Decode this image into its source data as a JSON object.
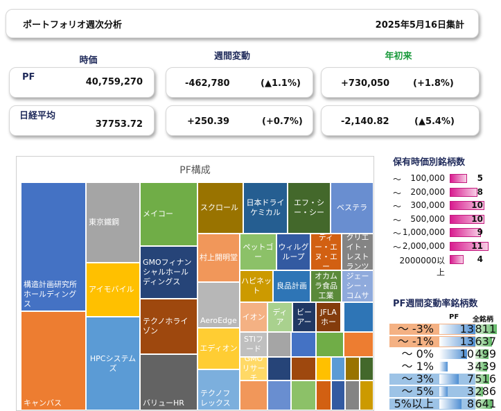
{
  "header": {
    "title": "ポートフォリオ週次分析",
    "date": "2025年5月16日集計"
  },
  "columns": {
    "price": "時価",
    "weekly": "週間変動",
    "ytd": "年初来"
  },
  "colors": {
    "ytd_header": "#1a9a3c",
    "holding_bar": "#d81b8f",
    "pf_bar": "#4f8fd3",
    "all_bar": "#62b867",
    "negative_band": "#f4b183",
    "positive_band": "#9dc3e6"
  },
  "rows": [
    {
      "label": "PF",
      "value": "40,759,270",
      "weekly_abs": "-462,780",
      "weekly_pct": "(▲1.1%)",
      "ytd_abs": "+730,050",
      "ytd_pct": "(+1.8%)"
    },
    {
      "label": "日経平均",
      "value": "37753.72",
      "weekly_abs": "+250.39",
      "weekly_pct": "(+0.7%)",
      "ytd_abs": "-2,140.82",
      "ytd_pct": "(▲5.4%)"
    }
  ],
  "treemap": {
    "title": "PF構成",
    "tiles": [
      {
        "name": "構造計画研究所ホールディングス",
        "color": "#4472c4"
      },
      {
        "name": "キャンバス",
        "color": "#ed7d31"
      },
      {
        "name": "東京鐵鋼",
        "color": "#a5a5a5"
      },
      {
        "name": "アイモバイル",
        "color": "#ffc000"
      },
      {
        "name": "HPCシステムズ",
        "color": "#5b9bd5"
      },
      {
        "name": "メイコー",
        "color": "#70ad47"
      },
      {
        "name": "GMOフィナンシャルホールディングス",
        "color": "#264478"
      },
      {
        "name": "テクノホライゾン",
        "color": "#9e480e"
      },
      {
        "name": "バリューHR",
        "color": "#636363"
      },
      {
        "name": "スクロール",
        "color": "#997300"
      },
      {
        "name": "日本ドライケミカル",
        "color": "#255e91"
      },
      {
        "name": "エフ・シー・シー",
        "color": "#43682b"
      },
      {
        "name": "ベステラ",
        "color": "#698ed0"
      },
      {
        "name": "村上開明堂",
        "color": "#f1975a"
      },
      {
        "name": "AeroEdge",
        "color": "#b7b7b7"
      },
      {
        "name": "エディオン",
        "color": "#ffcd33"
      },
      {
        "name": "テクノフレックス",
        "color": "#7cafdd"
      },
      {
        "name": "ペットゴー",
        "color": "#8cc168"
      },
      {
        "name": "ウィルグループ",
        "color": "#335aa1"
      },
      {
        "name": "ディー・エヌ・エー",
        "color": "#d26012"
      },
      {
        "name": "クリエイト・レストランツ",
        "color": "#848484"
      },
      {
        "name": "ハピネット",
        "color": "#cc9a00"
      },
      {
        "name": "良品計画",
        "color": "#2e75b6"
      },
      {
        "name": "オカムラ食品工業",
        "color": "#5a8a3a"
      },
      {
        "name": "ジェーシー・コムサ",
        "color": "#8faadc"
      },
      {
        "name": "イオン",
        "color": "#f4b183"
      },
      {
        "name": "ディア",
        "color": "#a9d18e"
      },
      {
        "name": "ビーアー",
        "color": "#203864"
      },
      {
        "name": "JFLAホー",
        "color": "#843c0c"
      },
      {
        "name": "STIフード",
        "color": "#bfbfbf"
      },
      {
        "name": "GMOリサーチ",
        "color": "#ffd966"
      }
    ]
  },
  "holdings_by_value": {
    "title": "保有時価別銘柄数",
    "rows": [
      {
        "prefix": "～",
        "amount": "100,000",
        "count": "5",
        "fill": 0.45
      },
      {
        "prefix": "～",
        "amount": "200,000",
        "count": "8",
        "fill": 0.72
      },
      {
        "prefix": "～",
        "amount": "300,000",
        "count": "10",
        "fill": 0.9
      },
      {
        "prefix": "～",
        "amount": "500,000",
        "count": "10",
        "fill": 0.9
      },
      {
        "prefix": "～",
        "amount": "1,000,000",
        "count": "9",
        "fill": 0.81
      },
      {
        "prefix": "～",
        "amount": "2,000,000",
        "count": "11",
        "fill": 1.0
      },
      {
        "prefix": "",
        "amount": "2000000以上",
        "count": "4",
        "fill": 0.36
      }
    ]
  },
  "weekly_change_counts": {
    "title": "PF週間変動率銘柄数",
    "col_pf": "PF",
    "col_all": "全銘柄",
    "rows": [
      {
        "label": "～ -3%",
        "pf": "13",
        "all": "811",
        "pf_fill": 1.0,
        "all_fill": 1.0,
        "band": "neg"
      },
      {
        "label": "～ -1%",
        "pf": "13",
        "all": "637",
        "pf_fill": 1.0,
        "all_fill": 0.78,
        "band": "neg"
      },
      {
        "label": "～ 0%",
        "pf": "10",
        "all": "499",
        "pf_fill": 0.77,
        "all_fill": 0.62,
        "band": "none"
      },
      {
        "label": "～ 1%",
        "pf": "3",
        "all": "439",
        "pf_fill": 0.23,
        "all_fill": 0.54,
        "band": "none"
      },
      {
        "label": "～ 3%",
        "pf": "7",
        "all": "516",
        "pf_fill": 0.54,
        "all_fill": 0.64,
        "band": "pos"
      },
      {
        "label": "～ 5%",
        "pf": "3",
        "all": "286",
        "pf_fill": 0.23,
        "all_fill": 0.35,
        "band": "pos"
      },
      {
        "label": "5%以上",
        "pf": "8",
        "all": "641",
        "pf_fill": 0.62,
        "all_fill": 0.79,
        "band": "pos"
      }
    ]
  }
}
